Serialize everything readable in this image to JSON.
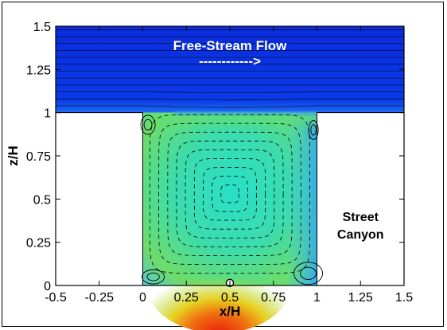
{
  "chart_data": {
    "type": "contour",
    "xlabel": "x/H",
    "ylabel": "z/H",
    "xlim": [
      -0.5,
      1.5
    ],
    "ylim": [
      0,
      1.5
    ],
    "x_ticks": [
      "-0.5",
      "-0.25",
      "0",
      "0.25",
      "0.5",
      "0.75",
      "1",
      "1.25",
      "1.5"
    ],
    "y_ticks": [
      "0",
      "0.25",
      "0.5",
      "0.75",
      "1",
      "1.25",
      "1.5"
    ],
    "annotations": {
      "free_stream": "Free-Stream Flow",
      "arrow": "------------>",
      "canyon_line1": "Street",
      "canyon_line2": "Canyon"
    },
    "regions": {
      "free_stream_band": {
        "x": [
          -0.5,
          1.5
        ],
        "z": [
          1.0,
          1.5
        ]
      },
      "canyon_cavity": {
        "x": [
          0,
          1
        ],
        "z": [
          0,
          1.0
        ]
      },
      "left_building": {
        "x": [
          -0.5,
          0
        ],
        "z": [
          0,
          1.0
        ]
      },
      "right_building": {
        "x": [
          1,
          1.5
        ],
        "z": [
          0,
          1.0
        ]
      }
    },
    "vortex_center": {
      "x": 0.5,
      "z": 0.53
    },
    "source_marker": {
      "x": 0.5,
      "z": 0.01
    },
    "colors": {
      "free_stream": "#0a2ee8",
      "canyon_mid": "#2ad9b8",
      "canyon_edge": "#6fe060",
      "hot_spot": "#e03010",
      "building": "#ffffff"
    }
  }
}
